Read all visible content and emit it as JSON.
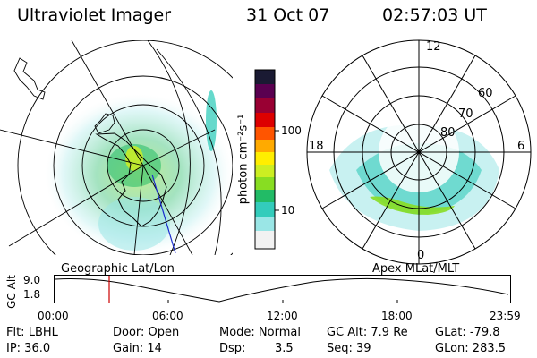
{
  "header": {
    "instrument": "Ultraviolet Imager",
    "date": "31 Oct 07",
    "time": "02:57:03 UT"
  },
  "colorbar": {
    "unit_label": "photon cm⁻²s⁻¹",
    "ticks": [
      "100",
      "10"
    ],
    "scale": "log",
    "colors": [
      "#f2f2f2",
      "#9ae6e6",
      "#33ccbb",
      "#22bb66",
      "#88dd22",
      "#ccee22",
      "#ffee00",
      "#ffaa00",
      "#ff5500",
      "#dd0000",
      "#990033",
      "#5a0050",
      "#1a1a33"
    ]
  },
  "left_map": {
    "projection_label": "Geographic Lat/Lon"
  },
  "right_map": {
    "projection_label": "Apex MLat/MLT",
    "mlt_labels": {
      "top": "12",
      "left": "18",
      "right": "6",
      "bottom": "0"
    },
    "lat_labels": [
      "60",
      "70",
      "80"
    ]
  },
  "altitude_plot": {
    "ylabel": "GC Alt",
    "yticks": [
      "9.0",
      "1.8"
    ],
    "xticks": [
      "00:00",
      "06:00",
      "12:00",
      "18:00",
      "23:59"
    ],
    "current_time_marker": "02:57",
    "marker_color": "#cc0000"
  },
  "info": {
    "flt": "Flt: LBHL",
    "door": "Door: Open",
    "mode": "Mode: Normal",
    "gc_alt": "GC Alt: 7.9 Re",
    "glat": "GLat: -79.8",
    "ip": "IP: 36.0",
    "gain": "Gain: 14",
    "dsp_label": "Dsp:",
    "dsp_value": "3.5",
    "seq": "Seq: 39",
    "glon": "GLon: 283.5"
  }
}
